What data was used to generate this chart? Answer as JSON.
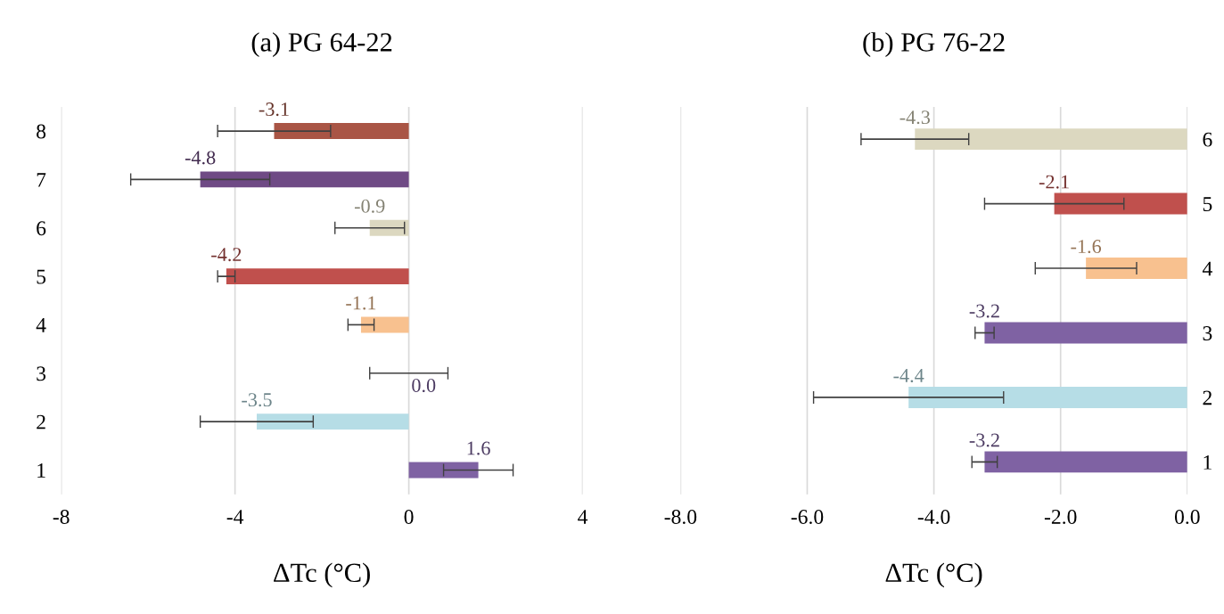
{
  "chart_data": [
    {
      "type": "bar",
      "orientation": "horizontal",
      "title": "(a) PG 64-22",
      "xlabel": "ΔTc (°C)",
      "categories": [
        "8",
        "7",
        "6",
        "5",
        "4",
        "3",
        "2",
        "1"
      ],
      "values": [
        -3.1,
        -4.8,
        -0.9,
        -4.2,
        -1.1,
        0.0,
        -3.5,
        1.6
      ],
      "errors": [
        1.3,
        1.6,
        0.8,
        0.2,
        0.3,
        0.9,
        1.3,
        0.8
      ],
      "value_labels": [
        "-3.1",
        "-4.8",
        "-0.9",
        "-4.2",
        "-1.1",
        "0.0",
        "-3.5",
        "1.6"
      ],
      "colors": [
        "#a95545",
        "#6f4a85",
        "#dcd8c0",
        "#c0504d",
        "#f8c18f",
        "#7f62a3",
        "#b6dde6",
        "#7f62a3"
      ],
      "xlim": [
        -8,
        4
      ],
      "xticks": [
        -8,
        -4,
        0,
        4
      ],
      "grid": "x"
    },
    {
      "type": "bar",
      "orientation": "horizontal",
      "title": "(b) PG 76-22",
      "xlabel": "ΔTc (°C)",
      "categories": [
        "6",
        "5",
        "4",
        "3",
        "2",
        "1"
      ],
      "values": [
        -4.3,
        -2.1,
        -1.6,
        -3.2,
        -4.4,
        -3.2
      ],
      "errors": [
        0.85,
        1.1,
        0.8,
        0.15,
        1.5,
        0.2
      ],
      "value_labels": [
        "-4.3",
        "-2.1",
        "-1.6",
        "-3.2",
        "-4.4",
        "-3.2"
      ],
      "colors": [
        "#dcd8c0",
        "#c0504d",
        "#f8c18f",
        "#7f62a3",
        "#b6dde6",
        "#7f62a3"
      ],
      "xlim": [
        -8,
        0
      ],
      "xticks": [
        {
          "value": -8,
          "label": "-8.0"
        },
        {
          "value": -6,
          "label": "-6.0"
        },
        {
          "value": -4,
          "label": "-4.0"
        },
        {
          "value": -2,
          "label": "-2.0"
        },
        {
          "value": 0,
          "label": "0.0"
        }
      ],
      "grid": "x"
    }
  ]
}
